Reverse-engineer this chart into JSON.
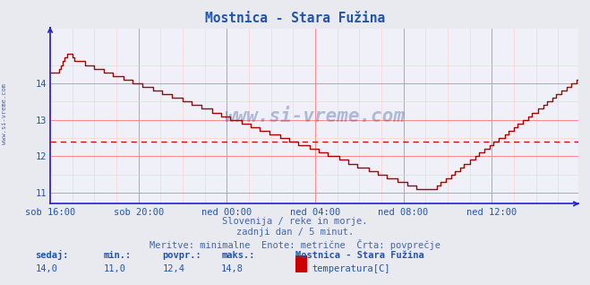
{
  "title": "Mostnica - Stara Fužina",
  "bg_color": "#e8eaf0",
  "plot_bg_color": "#f0f0f8",
  "grid_major_color": "#ff8888",
  "grid_minor_color": "#ffcccc",
  "line_color": "#aa0000",
  "avg_line_color": "#cc0000",
  "avg_value": 12.4,
  "ymin": 10.7,
  "ymax": 15.5,
  "yticks": [
    11,
    12,
    13,
    14
  ],
  "xlabel_color": "#2255aa",
  "title_color": "#2255aa",
  "xtick_labels": [
    "sob 16:00",
    "sob 20:00",
    "ned 00:00",
    "ned 04:00",
    "ned 08:00",
    "ned 12:00"
  ],
  "xtick_positions": [
    0,
    48,
    96,
    144,
    192,
    240
  ],
  "footer_line1": "Slovenija / reke in morje.",
  "footer_line2": "zadnji dan / 5 minut.",
  "footer_line3": "Meritve: minimalne  Enote: metrične  Črta: povprečje",
  "footer_color": "#4466aa",
  "stat_label_color": "#2255aa",
  "stat_value_color": "#2255aa",
  "sedaj": "14,0",
  "min_val": "11,0",
  "povpr": "12,4",
  "maks": "14,8",
  "legend_station": "Mostnica - Stara Fužina",
  "legend_param": "temperatura[C]",
  "watermark": "www.si-vreme.com",
  "watermark_color": "#1a3a8a",
  "side_text": "www.si-vreme.com",
  "num_points": 288,
  "spine_color": "#2222cc",
  "left_spine_color": "#2222cc"
}
